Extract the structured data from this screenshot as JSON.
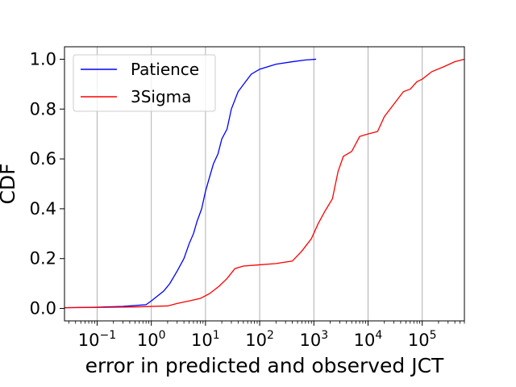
{
  "chart_data": {
    "type": "line",
    "title": "",
    "xlabel": "error in predicted and observed JCT",
    "ylabel": "CDF",
    "x_scale": "log",
    "xlim": [
      0.025,
      600000
    ],
    "ylim": [
      -0.05,
      1.05
    ],
    "grid": "x-major",
    "legend_position": "top-left",
    "x_ticks": [
      {
        "base": "10",
        "exp": "−1",
        "value": 0.1
      },
      {
        "base": "10",
        "exp": "0",
        "value": 1
      },
      {
        "base": "10",
        "exp": "1",
        "value": 10
      },
      {
        "base": "10",
        "exp": "2",
        "value": 100
      },
      {
        "base": "10",
        "exp": "3",
        "value": 1000
      },
      {
        "base": "10",
        "exp": "4",
        "value": 10000
      },
      {
        "base": "10",
        "exp": "5",
        "value": 100000
      }
    ],
    "y_ticks": [
      {
        "label": "0.0",
        "value": 0.0
      },
      {
        "label": "0.2",
        "value": 0.2
      },
      {
        "label": "0.4",
        "value": 0.4
      },
      {
        "label": "0.6",
        "value": 0.6
      },
      {
        "label": "0.8",
        "value": 0.8
      },
      {
        "label": "1.0",
        "value": 1.0
      }
    ],
    "series": [
      {
        "name": "Patience",
        "color": "#0000ff",
        "points": [
          [
            0.025,
            0.003
          ],
          [
            0.1,
            0.005
          ],
          [
            0.3,
            0.008
          ],
          [
            0.8,
            0.015
          ],
          [
            1.0,
            0.03
          ],
          [
            1.3,
            0.05
          ],
          [
            1.7,
            0.07
          ],
          [
            2.2,
            0.1
          ],
          [
            3.0,
            0.15
          ],
          [
            4.0,
            0.2
          ],
          [
            5.0,
            0.26
          ],
          [
            6.0,
            0.3
          ],
          [
            7.0,
            0.35
          ],
          [
            8.5,
            0.4
          ],
          [
            10.0,
            0.47
          ],
          [
            12.0,
            0.53
          ],
          [
            14.0,
            0.58
          ],
          [
            17.0,
            0.62
          ],
          [
            20.0,
            0.68
          ],
          [
            25.0,
            0.72
          ],
          [
            30.0,
            0.8
          ],
          [
            40.0,
            0.87
          ],
          [
            55.0,
            0.91
          ],
          [
            70.0,
            0.94
          ],
          [
            100.0,
            0.96
          ],
          [
            200.0,
            0.98
          ],
          [
            400.0,
            0.99
          ],
          [
            700.0,
            0.997
          ],
          [
            1100.0,
            1.0
          ]
        ]
      },
      {
        "name": "3Sigma",
        "color": "#ff0000",
        "points": [
          [
            0.025,
            0.003
          ],
          [
            0.1,
            0.004
          ],
          [
            0.5,
            0.006
          ],
          [
            1.0,
            0.008
          ],
          [
            2.0,
            0.01
          ],
          [
            3.0,
            0.02
          ],
          [
            5.0,
            0.03
          ],
          [
            8.0,
            0.04
          ],
          [
            12.0,
            0.06
          ],
          [
            18.0,
            0.09
          ],
          [
            25.0,
            0.12
          ],
          [
            35.0,
            0.16
          ],
          [
            50.0,
            0.17
          ],
          [
            100.0,
            0.175
          ],
          [
            200.0,
            0.18
          ],
          [
            400.0,
            0.19
          ],
          [
            600.0,
            0.23
          ],
          [
            900.0,
            0.28
          ],
          [
            1200.0,
            0.34
          ],
          [
            1600.0,
            0.39
          ],
          [
            2200.0,
            0.44
          ],
          [
            2800.0,
            0.55
          ],
          [
            3500.0,
            0.61
          ],
          [
            5000.0,
            0.63
          ],
          [
            7000.0,
            0.69
          ],
          [
            10000.0,
            0.7
          ],
          [
            15000.0,
            0.71
          ],
          [
            20000.0,
            0.77
          ],
          [
            30000.0,
            0.82
          ],
          [
            45000.0,
            0.87
          ],
          [
            60000.0,
            0.88
          ],
          [
            80000.0,
            0.91
          ],
          [
            100000.0,
            0.92
          ],
          [
            150000.0,
            0.95
          ],
          [
            250000.0,
            0.97
          ],
          [
            400000.0,
            0.99
          ],
          [
            600000.0,
            1.0
          ]
        ]
      }
    ]
  }
}
